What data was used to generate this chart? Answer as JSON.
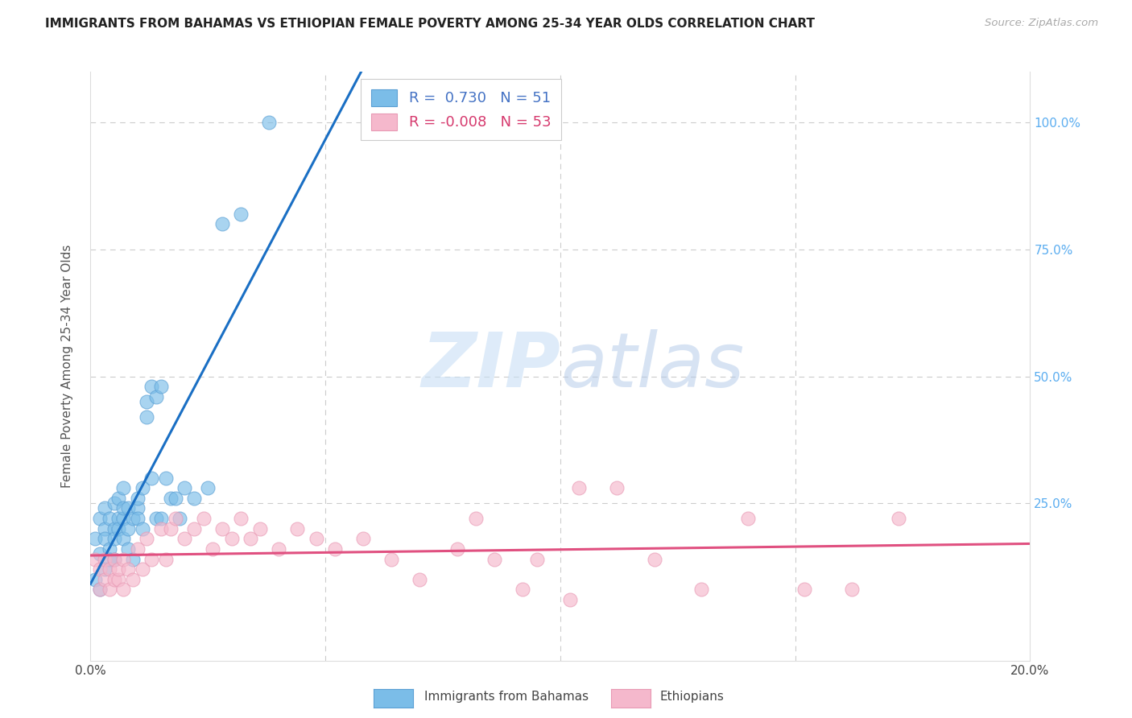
{
  "title": "IMMIGRANTS FROM BAHAMAS VS ETHIOPIAN FEMALE POVERTY AMONG 25-34 YEAR OLDS CORRELATION CHART",
  "source": "Source: ZipAtlas.com",
  "ylabel": "Female Poverty Among 25-34 Year Olds",
  "xlim": [
    0.0,
    0.2
  ],
  "ylim": [
    -0.06,
    1.1
  ],
  "blue_R": 0.73,
  "blue_N": 51,
  "pink_R": -0.008,
  "pink_N": 53,
  "blue_color": "#7bbde8",
  "blue_edge_color": "#5a9fd4",
  "blue_line_color": "#1a6fc4",
  "pink_color": "#f5b8cc",
  "pink_edge_color": "#e899b4",
  "pink_line_color": "#e05080",
  "legend_label_blue": "Immigrants from Bahamas",
  "legend_label_pink": "Ethiopians",
  "watermark_zip": "ZIP",
  "watermark_atlas": "atlas",
  "title_color": "#222222",
  "right_axis_color": "#5badf0",
  "grid_color": "#cccccc",
  "blue_scatter_x": [
    0.001,
    0.001,
    0.002,
    0.002,
    0.002,
    0.003,
    0.003,
    0.003,
    0.003,
    0.004,
    0.004,
    0.004,
    0.005,
    0.005,
    0.005,
    0.005,
    0.006,
    0.006,
    0.006,
    0.007,
    0.007,
    0.007,
    0.007,
    0.008,
    0.008,
    0.008,
    0.009,
    0.009,
    0.01,
    0.01,
    0.01,
    0.011,
    0.011,
    0.012,
    0.012,
    0.013,
    0.013,
    0.014,
    0.014,
    0.015,
    0.015,
    0.016,
    0.017,
    0.018,
    0.019,
    0.02,
    0.022,
    0.025,
    0.028,
    0.032,
    0.038
  ],
  "blue_scatter_y": [
    0.18,
    0.1,
    0.22,
    0.15,
    0.08,
    0.2,
    0.18,
    0.24,
    0.12,
    0.16,
    0.22,
    0.14,
    0.2,
    0.25,
    0.18,
    0.14,
    0.22,
    0.2,
    0.26,
    0.22,
    0.18,
    0.24,
    0.28,
    0.2,
    0.24,
    0.16,
    0.22,
    0.14,
    0.24,
    0.26,
    0.22,
    0.28,
    0.2,
    0.45,
    0.42,
    0.48,
    0.3,
    0.46,
    0.22,
    0.48,
    0.22,
    0.3,
    0.26,
    0.26,
    0.22,
    0.28,
    0.26,
    0.28,
    0.8,
    0.82,
    1.0
  ],
  "pink_scatter_x": [
    0.001,
    0.002,
    0.002,
    0.003,
    0.003,
    0.004,
    0.004,
    0.005,
    0.005,
    0.006,
    0.006,
    0.007,
    0.007,
    0.008,
    0.009,
    0.01,
    0.011,
    0.012,
    0.013,
    0.015,
    0.016,
    0.017,
    0.018,
    0.02,
    0.022,
    0.024,
    0.026,
    0.028,
    0.03,
    0.032,
    0.034,
    0.036,
    0.04,
    0.044,
    0.048,
    0.052,
    0.058,
    0.064,
    0.07,
    0.078,
    0.086,
    0.095,
    0.104,
    0.112,
    0.12,
    0.13,
    0.14,
    0.152,
    0.162,
    0.172,
    0.082,
    0.092,
    0.102
  ],
  "pink_scatter_y": [
    0.14,
    0.12,
    0.08,
    0.1,
    0.14,
    0.12,
    0.08,
    0.1,
    0.14,
    0.1,
    0.12,
    0.08,
    0.14,
    0.12,
    0.1,
    0.16,
    0.12,
    0.18,
    0.14,
    0.2,
    0.14,
    0.2,
    0.22,
    0.18,
    0.2,
    0.22,
    0.16,
    0.2,
    0.18,
    0.22,
    0.18,
    0.2,
    0.16,
    0.2,
    0.18,
    0.16,
    0.18,
    0.14,
    0.1,
    0.16,
    0.14,
    0.14,
    0.28,
    0.28,
    0.14,
    0.08,
    0.22,
    0.08,
    0.08,
    0.22,
    0.22,
    0.08,
    0.06
  ]
}
